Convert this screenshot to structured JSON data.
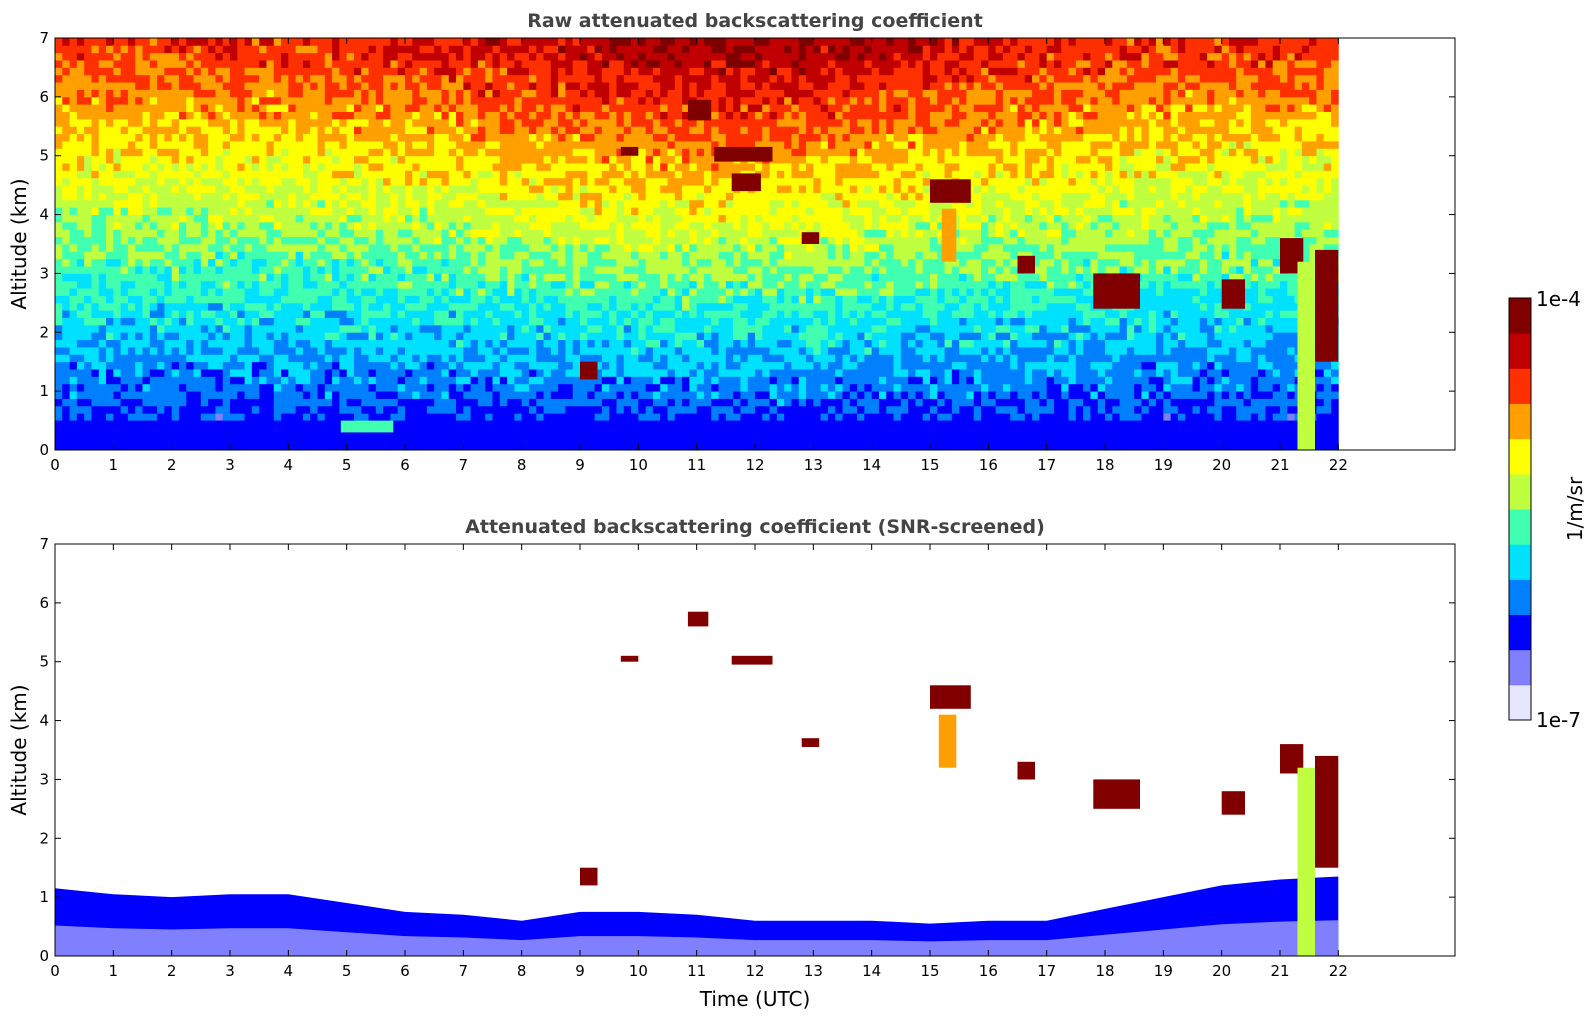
{
  "chart_data": [
    {
      "type": "heatmap",
      "title": "Raw attenuated backscattering coefficient",
      "xlabel": "",
      "ylabel": "Altitude (km)",
      "xlim": [
        0,
        24
      ],
      "ylim": [
        0,
        7
      ],
      "xticks": [
        "0",
        "1",
        "2",
        "3",
        "4",
        "5",
        "6",
        "7",
        "8",
        "9",
        "10",
        "11",
        "12",
        "13",
        "14",
        "15",
        "16",
        "17",
        "18",
        "19",
        "20",
        "21",
        "22"
      ],
      "yticks": [
        "0",
        "1",
        "2",
        "3",
        "4",
        "5",
        "6",
        "7"
      ],
      "data_end_time": 22,
      "background_noise": true,
      "features": [
        {
          "t0": 0,
          "t1": 22,
          "z0": 0,
          "z1": 0.5,
          "level": 0.17
        },
        {
          "t0": 4.9,
          "t1": 5.8,
          "z0": 0.3,
          "z1": 0.5,
          "level": 0.42
        },
        {
          "t0": 9.0,
          "t1": 9.3,
          "z0": 1.2,
          "z1": 1.5,
          "level": 0.92
        },
        {
          "t0": 9.7,
          "t1": 10.0,
          "z0": 5.0,
          "z1": 5.15,
          "level": 0.95
        },
        {
          "t0": 10.85,
          "t1": 11.25,
          "z0": 5.6,
          "z1": 5.95,
          "level": 0.96
        },
        {
          "t0": 11.3,
          "t1": 12.3,
          "z0": 4.9,
          "z1": 5.15,
          "level": 0.95
        },
        {
          "t0": 11.6,
          "t1": 12.1,
          "z0": 4.4,
          "z1": 4.7,
          "level": 0.94
        },
        {
          "t0": 12.8,
          "t1": 13.1,
          "z0": 3.5,
          "z1": 3.7,
          "level": 0.93
        },
        {
          "t0": 15.2,
          "t1": 15.45,
          "z0": 3.2,
          "z1": 4.1,
          "level": 0.72
        },
        {
          "t0": 15.0,
          "t1": 15.7,
          "z0": 4.2,
          "z1": 4.6,
          "level": 0.93
        },
        {
          "t0": 16.5,
          "t1": 16.8,
          "z0": 3.0,
          "z1": 3.3,
          "level": 0.93
        },
        {
          "t0": 17.8,
          "t1": 18.6,
          "z0": 2.4,
          "z1": 3.0,
          "level": 0.93
        },
        {
          "t0": 20.0,
          "t1": 20.4,
          "z0": 2.4,
          "z1": 2.9,
          "level": 0.93
        },
        {
          "t0": 21.0,
          "t1": 21.4,
          "z0": 3.0,
          "z1": 3.6,
          "level": 0.95
        },
        {
          "t0": 21.3,
          "t1": 21.6,
          "z0": 0.0,
          "z1": 3.2,
          "level": 0.5
        },
        {
          "t0": 21.6,
          "t1": 22.0,
          "z0": 1.5,
          "z1": 3.4,
          "level": 0.93
        }
      ]
    },
    {
      "type": "heatmap",
      "title": "Attenuated backscattering coefficient (SNR-screened)",
      "xlabel": "Time (UTC)",
      "ylabel": "Altitude (km)",
      "xlim": [
        0,
        24
      ],
      "ylim": [
        0,
        7
      ],
      "xticks": [
        "0",
        "1",
        "2",
        "3",
        "4",
        "5",
        "6",
        "7",
        "8",
        "9",
        "10",
        "11",
        "12",
        "13",
        "14",
        "15",
        "16",
        "17",
        "18",
        "19",
        "20",
        "21",
        "22"
      ],
      "yticks": [
        "0",
        "1",
        "2",
        "3",
        "4",
        "5",
        "6",
        "7"
      ],
      "data_end_time": 22,
      "background_noise": false,
      "boundary_layer_top": [
        [
          0,
          1.15
        ],
        [
          1,
          1.05
        ],
        [
          2,
          1.0
        ],
        [
          3,
          1.05
        ],
        [
          4,
          1.05
        ],
        [
          5,
          0.9
        ],
        [
          6,
          0.75
        ],
        [
          7,
          0.7
        ],
        [
          8,
          0.6
        ],
        [
          9,
          0.75
        ],
        [
          10,
          0.75
        ],
        [
          11,
          0.7
        ],
        [
          12,
          0.6
        ],
        [
          13,
          0.6
        ],
        [
          14,
          0.6
        ],
        [
          15,
          0.55
        ],
        [
          16,
          0.6
        ],
        [
          17,
          0.6
        ],
        [
          18,
          0.8
        ],
        [
          19,
          1.0
        ],
        [
          20,
          1.2
        ],
        [
          21,
          1.3
        ],
        [
          22,
          1.35
        ]
      ],
      "features": [
        {
          "t0": 9.0,
          "t1": 9.3,
          "z0": 1.2,
          "z1": 1.5,
          "level": 0.99
        },
        {
          "t0": 9.7,
          "t1": 10.0,
          "z0": 5.0,
          "z1": 5.1,
          "level": 0.99
        },
        {
          "t0": 10.85,
          "t1": 11.2,
          "z0": 5.6,
          "z1": 5.85,
          "level": 0.95
        },
        {
          "t0": 11.6,
          "t1": 12.3,
          "z0": 4.95,
          "z1": 5.1,
          "level": 0.95
        },
        {
          "t0": 12.8,
          "t1": 13.1,
          "z0": 3.55,
          "z1": 3.7,
          "level": 0.99
        },
        {
          "t0": 15.15,
          "t1": 15.45,
          "z0": 3.2,
          "z1": 4.1,
          "level": 0.7
        },
        {
          "t0": 15.0,
          "t1": 15.7,
          "z0": 4.2,
          "z1": 4.6,
          "level": 0.99
        },
        {
          "t0": 16.5,
          "t1": 16.8,
          "z0": 3.0,
          "z1": 3.3,
          "level": 0.99
        },
        {
          "t0": 17.8,
          "t1": 18.6,
          "z0": 2.5,
          "z1": 3.0,
          "level": 0.99
        },
        {
          "t0": 20.0,
          "t1": 20.4,
          "z0": 2.4,
          "z1": 2.8,
          "level": 0.99
        },
        {
          "t0": 21.0,
          "t1": 21.4,
          "z0": 3.1,
          "z1": 3.6,
          "level": 0.99
        },
        {
          "t0": 21.3,
          "t1": 21.6,
          "z0": 0.0,
          "z1": 3.2,
          "level": 0.55
        },
        {
          "t0": 21.6,
          "t1": 22.0,
          "z0": 1.5,
          "z1": 3.4,
          "level": 0.99
        }
      ]
    }
  ],
  "colorbar": {
    "label": "1/m/sr",
    "max_label": "1e-4",
    "min_label": "1e-7",
    "scale": "log",
    "range": [
      1e-07,
      0.0001
    ],
    "colormap": "jet",
    "colors": [
      "#e6e6ff",
      "#8080ff",
      "#0000ff",
      "#0080ff",
      "#00e0ff",
      "#40ffb0",
      "#c0ff40",
      "#ffff00",
      "#ffa000",
      "#ff3000",
      "#c00000",
      "#800000"
    ]
  }
}
